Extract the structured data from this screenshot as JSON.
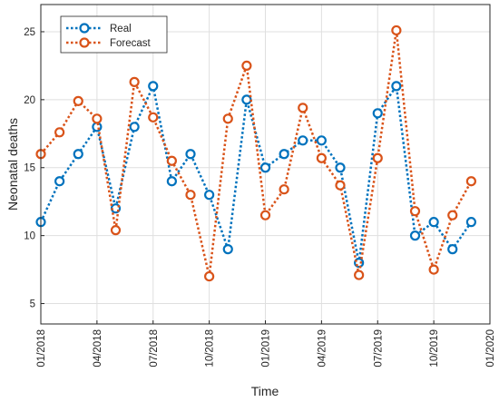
{
  "chart_data": {
    "type": "line",
    "title": "",
    "xlabel": "Time",
    "ylabel": "Neonatal deaths",
    "x": [
      "2018-01",
      "2018-02",
      "2018-03",
      "2018-04",
      "2018-05",
      "2018-06",
      "2018-07",
      "2018-08",
      "2018-09",
      "2018-10",
      "2018-11",
      "2018-12",
      "2019-01",
      "2019-02",
      "2019-03",
      "2019-04",
      "2019-05",
      "2019-06",
      "2019-07",
      "2019-08",
      "2019-09",
      "2019-10",
      "2019-11",
      "2019-12"
    ],
    "x_range": [
      "2018-01",
      "2020-01"
    ],
    "x_ticks": [
      "01/2018",
      "04/2018",
      "07/2018",
      "10/2018",
      "01/2019",
      "04/2019",
      "07/2019",
      "10/2019",
      "01/2020"
    ],
    "ylim": [
      3.5,
      27
    ],
    "y_ticks": [
      5,
      10,
      15,
      20,
      25
    ],
    "grid": true,
    "legend_position": "top-left",
    "series": [
      {
        "name": "Real",
        "color": "#0072BD",
        "values": [
          11,
          14,
          16,
          18,
          12,
          18,
          21,
          14,
          16,
          13,
          9,
          20,
          15,
          16,
          17,
          17,
          15,
          8,
          19,
          21,
          10,
          11,
          9,
          11
        ]
      },
      {
        "name": "Forecast",
        "color": "#D95319",
        "values": [
          16,
          17.6,
          19.9,
          18.6,
          10.4,
          21.3,
          18.7,
          15.5,
          13,
          7,
          18.6,
          22.5,
          11.5,
          13.4,
          19.4,
          15.7,
          13.7,
          7.1,
          15.7,
          25.1,
          11.8,
          7.5,
          11.5,
          14
        ]
      }
    ]
  }
}
